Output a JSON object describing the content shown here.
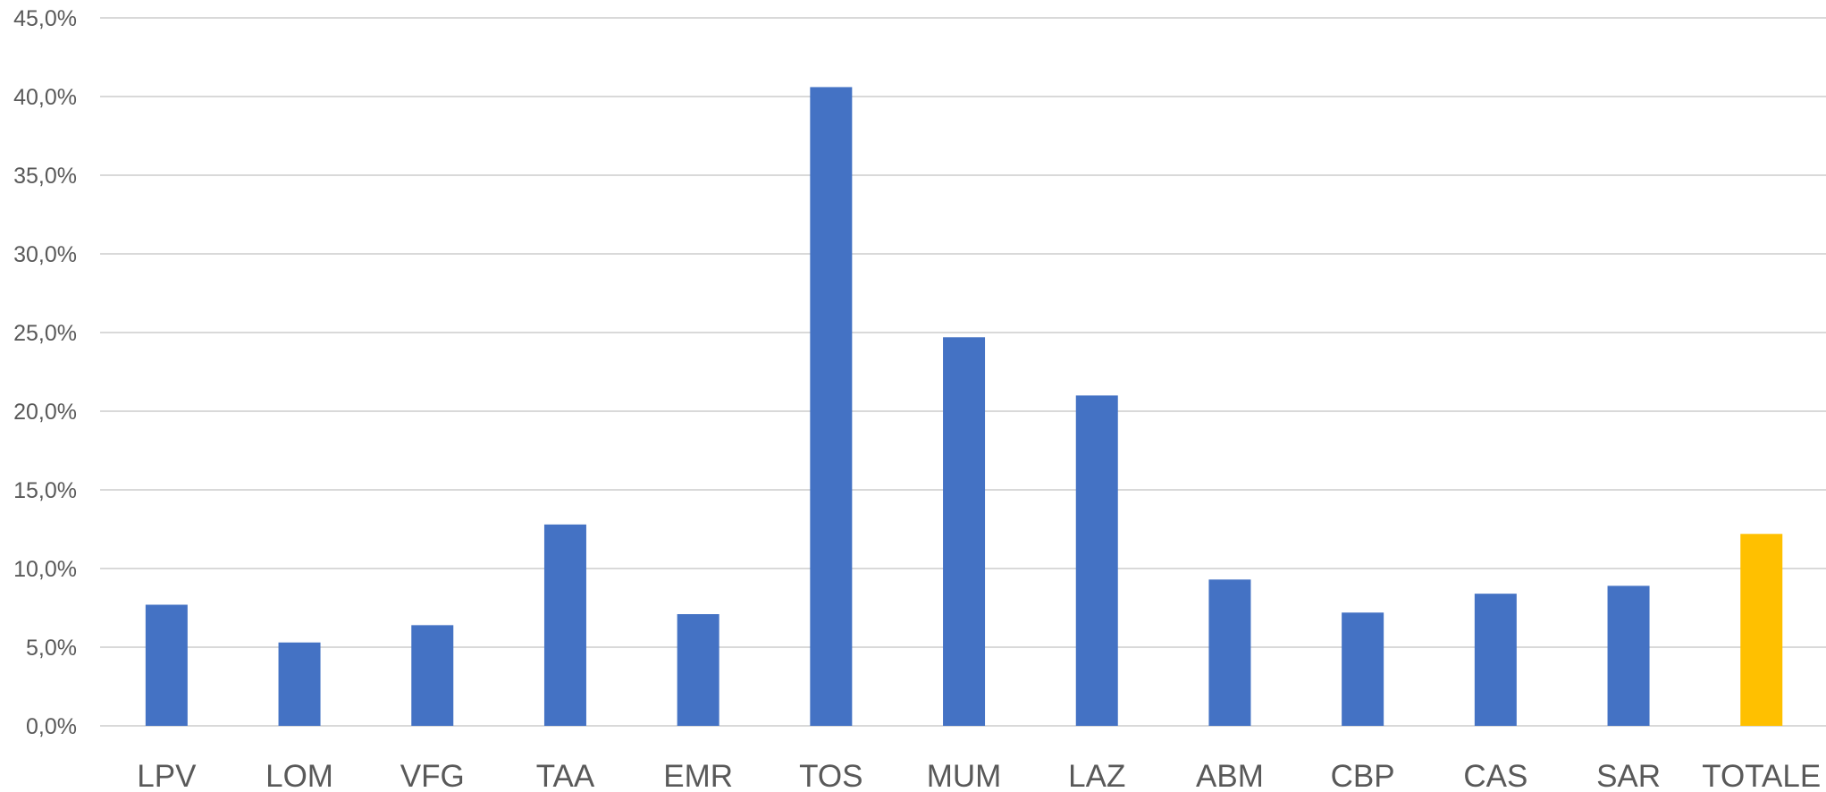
{
  "colors": {
    "bar": "#4472c4",
    "highlight": "#ffc000",
    "grid": "#d9d9d9",
    "text": "#595959"
  },
  "chart_data": {
    "type": "bar",
    "title": "",
    "xlabel": "",
    "ylabel": "",
    "categories": [
      "LPV",
      "LOM",
      "VFG",
      "TAA",
      "EMR",
      "TOS",
      "MUM",
      "LAZ",
      "ABM",
      "CBP",
      "CAS",
      "SAR",
      "TOTALE"
    ],
    "values": [
      7.7,
      5.3,
      6.4,
      12.8,
      7.1,
      40.6,
      24.7,
      21.0,
      9.3,
      7.2,
      8.4,
      8.9,
      12.2
    ],
    "highlight_category": "TOTALE",
    "ylim": [
      0,
      45
    ],
    "yticks": [
      0,
      5,
      10,
      15,
      20,
      25,
      30,
      35,
      40,
      45
    ],
    "ytick_labels": [
      "0,0%",
      "5,0%",
      "10,0%",
      "15,0%",
      "20,0%",
      "25,0%",
      "30,0%",
      "35,0%",
      "40,0%",
      "45,0%"
    ],
    "grid": true,
    "legend": "none"
  }
}
